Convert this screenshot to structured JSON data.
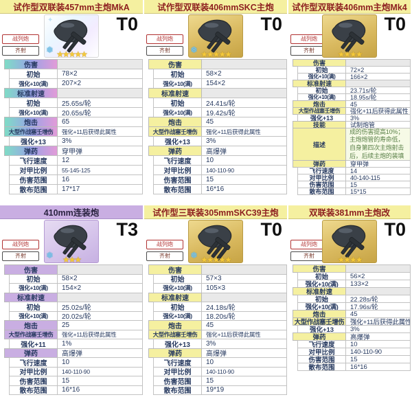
{
  "colors": {
    "header_gold": "#f5f0a0",
    "header_purple": "#c9aee2",
    "header_rainbow_1": "#7fdcc6",
    "header_rainbow_2": "#9aa3e6",
    "header_rainbow_3": "#e29bd8",
    "title_text": "#8d1f1f",
    "title_text_purple": "#2a2340",
    "table_text": "#26395f",
    "section_value_bg": "#e9e9e9",
    "cell_border": "#c2c2c2",
    "tag_red": "#b03030",
    "tag_dark": "#4a4a4a",
    "tier_text": "#101010",
    "star": "#f5c93a",
    "crystal": "#7cc8ee",
    "desc_text": "#5a8048",
    "desc_bg": "#f6fae6"
  },
  "panels": [
    {
      "title": "试作型双联装457mm主炮MkA",
      "tier": "T0",
      "theme": "rainbow",
      "tags": [
        {
          "label": "战列炮",
          "style": "red"
        },
        {
          "label": "齐射",
          "style": "dark"
        }
      ],
      "icon": {
        "name": "twin-457mm-turret",
        "barrels": 2,
        "stars_text": "★★★★★",
        "crystal": true
      },
      "rows": [
        {
          "style": "section",
          "label": "伤害",
          "value": ""
        },
        {
          "style": "plain",
          "label": "初始",
          "value": "78×2"
        },
        {
          "style": "plain",
          "label": "强化+10(满)",
          "value": "207×2"
        },
        {
          "style": "section",
          "label": "标准射速",
          "value": ""
        },
        {
          "style": "plain",
          "label": "初始",
          "value": "25.65s/轮"
        },
        {
          "style": "plain",
          "label": "强化+10(满)",
          "value": "20.65s/轮"
        },
        {
          "style": "head",
          "label": "炮击",
          "value": "65"
        },
        {
          "style": "head",
          "label": "大型作战塞壬增伤",
          "value": "强化+11后获得此属性"
        },
        {
          "style": "plain",
          "label": "强化+13",
          "value": "3%"
        },
        {
          "style": "head",
          "label": "弹药",
          "value": "穿甲弹"
        },
        {
          "style": "plain",
          "label": "飞行速度",
          "value": "12"
        },
        {
          "style": "plain",
          "label": "对甲比例",
          "value": "55-145-125"
        },
        {
          "style": "plain",
          "label": "伤害范围",
          "value": "16"
        },
        {
          "style": "plain",
          "label": "散布范围",
          "value": "17*17"
        }
      ]
    },
    {
      "title": "试作型双联装406mmSKC主炮",
      "tier": "T0",
      "theme": "gold",
      "tags": [
        {
          "label": "战列炮",
          "style": "red"
        },
        {
          "label": "齐射",
          "style": "dark"
        }
      ],
      "icon": {
        "name": "twin-406mm-skc-turret",
        "barrels": 2,
        "stars_text": "★★★★★",
        "crystal": true
      },
      "rows": [
        {
          "style": "section",
          "label": "伤害",
          "value": ""
        },
        {
          "style": "plain",
          "label": "初始",
          "value": "58×2"
        },
        {
          "style": "plain",
          "label": "强化+10(满)",
          "value": "154×2"
        },
        {
          "style": "section",
          "label": "标准射速",
          "value": ""
        },
        {
          "style": "plain",
          "label": "初始",
          "value": "24.41s/轮"
        },
        {
          "style": "plain",
          "label": "强化+10(满)",
          "value": "19.42s/轮"
        },
        {
          "style": "head",
          "label": "炮击",
          "value": "45"
        },
        {
          "style": "head",
          "label": "大型作战塞壬增伤",
          "value": "强化+11后获得此属性"
        },
        {
          "style": "plain",
          "label": "强化+13",
          "value": "3%"
        },
        {
          "style": "head",
          "label": "弹药",
          "value": "高爆弹"
        },
        {
          "style": "plain",
          "label": "飞行速度",
          "value": "10"
        },
        {
          "style": "plain",
          "label": "对甲比例",
          "value": "140-110-90"
        },
        {
          "style": "plain",
          "label": "伤害范围",
          "value": "15"
        },
        {
          "style": "plain",
          "label": "散布范围",
          "value": "16*16"
        }
      ]
    },
    {
      "title": "试作型双联装406mm主炮Mk4",
      "tier": "T0",
      "theme": "gold",
      "tags": [
        {
          "label": "战列炮",
          "style": "red"
        },
        {
          "label": "齐射",
          "style": "dark"
        }
      ],
      "icon": {
        "name": "twin-406mm-mk4-turret",
        "barrels": 2,
        "stars_text": "★★★★",
        "crystal": false
      },
      "rows": [
        {
          "style": "section",
          "label": "伤害",
          "value": ""
        },
        {
          "style": "plain",
          "label": "初始",
          "value": "72×2"
        },
        {
          "style": "plain",
          "label": "强化+10(满)",
          "value": "166×2"
        },
        {
          "style": "section",
          "label": "标准射速",
          "value": ""
        },
        {
          "style": "plain",
          "label": "初始",
          "value": "23.71s/轮"
        },
        {
          "style": "plain",
          "label": "强化+10(满)",
          "value": "18.95s/轮"
        },
        {
          "style": "head",
          "label": "炮击",
          "value": "45"
        },
        {
          "style": "head",
          "label": "大型作战塞壬增伤",
          "value": "强化+11后获得此属性"
        },
        {
          "style": "plain",
          "label": "强化+13",
          "value": "3%"
        },
        {
          "style": "head",
          "label": "技能",
          "value": "试制炮管"
        },
        {
          "style": "desc",
          "label": "描述",
          "value": "装备时，自身主炮造成的伤害提高10%；主炮炮管的寿命低，自身第四次主炮射击后，后续主炮的装填时间增加35%"
        },
        {
          "style": "head",
          "label": "弹药",
          "value": "穿甲弹"
        },
        {
          "style": "plain",
          "label": "飞行速度",
          "value": "14"
        },
        {
          "style": "plain",
          "label": "对甲比例",
          "value": "40-140-115"
        },
        {
          "style": "plain",
          "label": "伤害范围",
          "value": "15"
        },
        {
          "style": "plain",
          "label": "散布范围",
          "value": "15*15"
        }
      ]
    },
    {
      "title": "410mm连装炮",
      "tier": "T3",
      "theme": "purple",
      "tags": [
        {
          "label": "战列炮",
          "style": "red"
        },
        {
          "label": "齐射",
          "style": "dark"
        }
      ],
      "icon": {
        "name": "twin-410mm-turret",
        "barrels": 2,
        "stars_text": "★★★",
        "crystal": true
      },
      "rows": [
        {
          "style": "section",
          "label": "伤害",
          "value": ""
        },
        {
          "style": "plain",
          "label": "初始",
          "value": "58×2"
        },
        {
          "style": "plain",
          "label": "强化+10(满)",
          "value": "154×2"
        },
        {
          "style": "section",
          "label": "标准射速",
          "value": ""
        },
        {
          "style": "plain",
          "label": "初始",
          "value": "25.02s/轮"
        },
        {
          "style": "plain",
          "label": "强化+10(满)",
          "value": "20.02s/轮"
        },
        {
          "style": "head",
          "label": "炮击",
          "value": "25"
        },
        {
          "style": "head",
          "label": "大型作战塞壬增伤",
          "value": "强化+11后获得此属性"
        },
        {
          "style": "plain",
          "label": "强化+11",
          "value": "1%"
        },
        {
          "style": "head",
          "label": "弹药",
          "value": "高爆弹"
        },
        {
          "style": "plain",
          "label": "飞行速度",
          "value": "10"
        },
        {
          "style": "plain",
          "label": "对甲比例",
          "value": "140-110-90"
        },
        {
          "style": "plain",
          "label": "伤害范围",
          "value": "15"
        },
        {
          "style": "plain",
          "label": "散布范围",
          "value": "16*16"
        }
      ]
    },
    {
      "title": "试作型三联装305mmSKC39主炮",
      "tier": "T0",
      "theme": "gold",
      "tags": [
        {
          "label": "战列炮",
          "style": "red"
        },
        {
          "label": "齐射",
          "style": "dark"
        }
      ],
      "icon": {
        "name": "triple-305mm-skc39-turret",
        "barrels": 3,
        "stars_text": "★★★★★",
        "crystal": true
      },
      "rows": [
        {
          "style": "section",
          "label": "伤害",
          "value": ""
        },
        {
          "style": "plain",
          "label": "初始",
          "value": "57×3"
        },
        {
          "style": "plain",
          "label": "强化+10(满)",
          "value": "105×3"
        },
        {
          "style": "section",
          "label": "标准射速",
          "value": ""
        },
        {
          "style": "plain",
          "label": "初始",
          "value": "24.18s/轮"
        },
        {
          "style": "plain",
          "label": "强化+10(满)",
          "value": "18.20s/轮"
        },
        {
          "style": "head",
          "label": "炮击",
          "value": "45"
        },
        {
          "style": "head",
          "label": "大型作战塞壬增伤",
          "value": "强化+11后获得此属性"
        },
        {
          "style": "plain",
          "label": "强化+13",
          "value": "3%"
        },
        {
          "style": "head",
          "label": "弹药",
          "value": "高爆弹"
        },
        {
          "style": "plain",
          "label": "飞行速度",
          "value": "10"
        },
        {
          "style": "plain",
          "label": "对甲比例",
          "value": "140-110-90"
        },
        {
          "style": "plain",
          "label": "伤害范围",
          "value": "15"
        },
        {
          "style": "plain",
          "label": "散布范围",
          "value": "19*19"
        }
      ]
    },
    {
      "title": "双联装381mm主炮改",
      "tier": "T0",
      "theme": "gold",
      "tags": [
        {
          "label": "战列炮",
          "style": "red"
        },
        {
          "label": "齐射",
          "style": "dark"
        }
      ],
      "icon": {
        "name": "twin-381mm-kai-turret",
        "barrels": 2,
        "stars_text": "★★★★",
        "crystal": false
      },
      "rows": [
        {
          "style": "section",
          "label": "伤害",
          "value": ""
        },
        {
          "style": "plain",
          "label": "初始",
          "value": "56×2"
        },
        {
          "style": "plain",
          "label": "强化+10(满)",
          "value": "133×2"
        },
        {
          "style": "section",
          "label": "标准射速",
          "value": ""
        },
        {
          "style": "plain",
          "label": "初始",
          "value": "22.28s/轮"
        },
        {
          "style": "plain",
          "label": "强化+10(满)",
          "value": "17.96s/轮"
        },
        {
          "style": "head",
          "label": "炮击",
          "value": "45"
        },
        {
          "style": "head",
          "label": "大型作战塞壬增伤",
          "value": "强化+11后获得此属性"
        },
        {
          "style": "plain",
          "label": "强化+13",
          "value": "3%"
        },
        {
          "style": "head",
          "label": "弹药",
          "value": "高爆弹"
        },
        {
          "style": "plain",
          "label": "飞行速度",
          "value": "10"
        },
        {
          "style": "plain",
          "label": "对甲比例",
          "value": "140-110-90"
        },
        {
          "style": "plain",
          "label": "伤害范围",
          "value": "15"
        },
        {
          "style": "plain",
          "label": "散布范围",
          "value": "16*16"
        }
      ]
    }
  ]
}
